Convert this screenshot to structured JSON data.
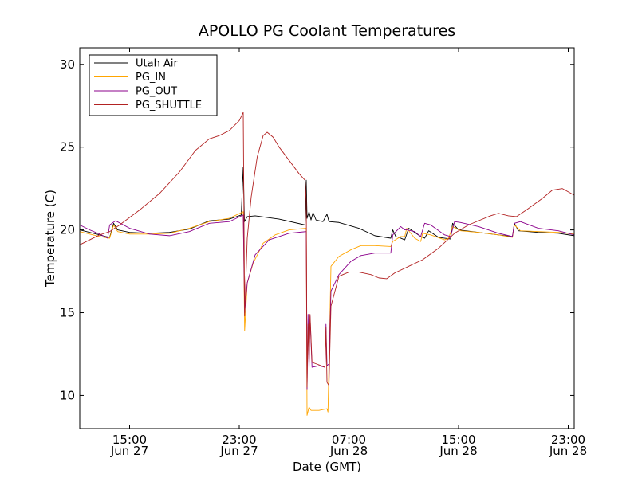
{
  "chart_data": {
    "type": "line",
    "title": "APOLLO PG Coolant Temperatures",
    "xlabel": "Date (GMT)",
    "ylabel": "Temperature (C)",
    "xlim": [
      11,
      35.8
    ],
    "ylim": [
      8,
      31
    ],
    "grid": false,
    "legend_position": "top-left",
    "yticks": [
      {
        "value": 10,
        "label": "10"
      },
      {
        "value": 15,
        "label": "15"
      },
      {
        "value": 20,
        "label": "20"
      },
      {
        "value": 25,
        "label": "25"
      },
      {
        "value": 30,
        "label": "30"
      }
    ],
    "xticks": [
      {
        "value": 13.5,
        "time": "15:00",
        "date": "Jun 27"
      },
      {
        "value": 19,
        "time": "23:00",
        "date": "Jun 27"
      },
      {
        "value": 24.5,
        "time": "07:00",
        "date": "Jun 28"
      },
      {
        "value": 30,
        "time": "15:00",
        "date": "Jun 28"
      },
      {
        "value": 35.5,
        "time": "23:00",
        "date": "Jun 28"
      }
    ],
    "series": [
      {
        "name": "Utah Air",
        "color": "#000000",
        "points": [
          [
            11,
            20.0
          ],
          [
            11.5,
            19.85
          ],
          [
            12,
            19.7
          ],
          [
            12.3,
            19.6
          ],
          [
            12.5,
            19.55
          ],
          [
            12.7,
            20.4
          ],
          [
            12.9,
            20.0
          ],
          [
            13.5,
            19.85
          ],
          [
            14.5,
            19.8
          ],
          [
            15.5,
            19.85
          ],
          [
            16.5,
            20.05
          ],
          [
            17.5,
            20.55
          ],
          [
            18.5,
            20.65
          ],
          [
            19.1,
            20.9
          ],
          [
            19.2,
            23.8
          ],
          [
            19.26,
            20.5
          ],
          [
            19.4,
            20.8
          ],
          [
            19.8,
            20.85
          ],
          [
            21,
            20.65
          ],
          [
            22.3,
            20.3
          ],
          [
            22.36,
            23.0
          ],
          [
            22.4,
            20.7
          ],
          [
            22.5,
            21.1
          ],
          [
            22.6,
            20.6
          ],
          [
            22.7,
            21.05
          ],
          [
            22.85,
            20.6
          ],
          [
            23.2,
            20.5
          ],
          [
            23.4,
            20.95
          ],
          [
            23.5,
            20.5
          ],
          [
            24,
            20.45
          ],
          [
            25,
            20.1
          ],
          [
            25.8,
            19.65
          ],
          [
            26.6,
            19.5
          ],
          [
            26.7,
            20.0
          ],
          [
            26.85,
            19.6
          ],
          [
            27.0,
            19.55
          ],
          [
            27.3,
            19.4
          ],
          [
            27.5,
            20.1
          ],
          [
            28.1,
            19.6
          ],
          [
            28.3,
            19.5
          ],
          [
            28.5,
            19.95
          ],
          [
            29,
            19.55
          ],
          [
            29.6,
            19.45
          ],
          [
            29.7,
            20.4
          ],
          [
            30,
            20.0
          ],
          [
            31,
            19.85
          ],
          [
            32,
            19.7
          ],
          [
            32.7,
            19.6
          ],
          [
            32.8,
            20.4
          ],
          [
            33,
            19.95
          ],
          [
            34,
            19.85
          ],
          [
            35,
            19.8
          ],
          [
            35.8,
            19.65
          ]
        ]
      },
      {
        "name": "PG_IN",
        "color": "#ffa500",
        "points": [
          [
            11,
            19.9
          ],
          [
            11.5,
            19.75
          ],
          [
            12,
            19.6
          ],
          [
            12.5,
            19.5
          ],
          [
            12.7,
            20.3
          ],
          [
            12.9,
            19.9
          ],
          [
            13.5,
            19.75
          ],
          [
            14.5,
            19.75
          ],
          [
            15.5,
            19.8
          ],
          [
            16.5,
            20.1
          ],
          [
            17.5,
            20.5
          ],
          [
            18.5,
            20.7
          ],
          [
            19.2,
            21.1
          ],
          [
            19.27,
            13.9
          ],
          [
            19.4,
            16.8
          ],
          [
            19.7,
            18.0
          ],
          [
            20.2,
            19.2
          ],
          [
            20.8,
            19.7
          ],
          [
            21.5,
            20.0
          ],
          [
            22.36,
            20.1
          ],
          [
            22.4,
            8.8
          ],
          [
            22.5,
            9.3
          ],
          [
            22.6,
            9.1
          ],
          [
            23.0,
            9.1
          ],
          [
            23.4,
            9.2
          ],
          [
            23.45,
            9.0
          ],
          [
            23.6,
            17.8
          ],
          [
            24,
            18.4
          ],
          [
            24.6,
            18.8
          ],
          [
            25.1,
            19.05
          ],
          [
            25.8,
            19.05
          ],
          [
            26.6,
            19.0
          ],
          [
            26.7,
            19.3
          ],
          [
            27.1,
            19.6
          ],
          [
            27.3,
            19.6
          ],
          [
            27.4,
            20.1
          ],
          [
            27.8,
            19.5
          ],
          [
            28.1,
            19.3
          ],
          [
            28.2,
            19.8
          ],
          [
            28.6,
            19.7
          ],
          [
            29.3,
            19.4
          ],
          [
            29.5,
            19.5
          ],
          [
            29.7,
            20.2
          ],
          [
            30.1,
            19.95
          ],
          [
            31,
            19.85
          ],
          [
            32,
            19.7
          ],
          [
            32.7,
            19.55
          ],
          [
            32.8,
            20.3
          ],
          [
            33.1,
            19.95
          ],
          [
            34,
            19.9
          ],
          [
            35,
            19.85
          ],
          [
            35.8,
            19.75
          ]
        ]
      },
      {
        "name": "PG_OUT",
        "color": "#8b008b",
        "points": [
          [
            11,
            20.3
          ],
          [
            11.5,
            20.0
          ],
          [
            12,
            19.75
          ],
          [
            12.4,
            19.5
          ],
          [
            12.5,
            20.3
          ],
          [
            12.8,
            20.55
          ],
          [
            13.5,
            20.1
          ],
          [
            14.5,
            19.75
          ],
          [
            15.5,
            19.65
          ],
          [
            16.5,
            19.9
          ],
          [
            17.5,
            20.4
          ],
          [
            18.5,
            20.5
          ],
          [
            19.2,
            20.9
          ],
          [
            19.27,
            15.0
          ],
          [
            19.4,
            16.8
          ],
          [
            19.8,
            18.5
          ],
          [
            20.5,
            19.4
          ],
          [
            21.5,
            19.8
          ],
          [
            22.36,
            19.9
          ],
          [
            22.4,
            10.4
          ],
          [
            22.45,
            14.9
          ],
          [
            22.5,
            11.5
          ],
          [
            22.55,
            14.8
          ],
          [
            22.65,
            11.7
          ],
          [
            23.0,
            11.8
          ],
          [
            23.3,
            11.7
          ],
          [
            23.35,
            14.3
          ],
          [
            23.4,
            11.8
          ],
          [
            23.5,
            11.9
          ],
          [
            23.6,
            16.3
          ],
          [
            24,
            17.3
          ],
          [
            24.6,
            18.1
          ],
          [
            25.1,
            18.45
          ],
          [
            25.8,
            18.6
          ],
          [
            26.6,
            18.6
          ],
          [
            26.7,
            19.7
          ],
          [
            27.1,
            20.2
          ],
          [
            27.3,
            20.0
          ],
          [
            27.4,
            20.0
          ],
          [
            27.8,
            19.9
          ],
          [
            28.1,
            19.6
          ],
          [
            28.3,
            20.4
          ],
          [
            28.6,
            20.3
          ],
          [
            29.3,
            19.7
          ],
          [
            29.6,
            19.6
          ],
          [
            29.8,
            20.5
          ],
          [
            30.1,
            20.45
          ],
          [
            31,
            20.2
          ],
          [
            32,
            19.8
          ],
          [
            32.7,
            19.6
          ],
          [
            32.8,
            20.4
          ],
          [
            33.1,
            20.5
          ],
          [
            34,
            20.1
          ],
          [
            35,
            19.95
          ],
          [
            35.8,
            19.7
          ]
        ]
      },
      {
        "name": "PG_SHUTTLE",
        "color": "#b22222",
        "points": [
          [
            11,
            19.1
          ],
          [
            11.5,
            19.4
          ],
          [
            12,
            19.7
          ],
          [
            12.5,
            19.9
          ],
          [
            13,
            20.3
          ],
          [
            14,
            21.2
          ],
          [
            15,
            22.2
          ],
          [
            16,
            23.5
          ],
          [
            16.8,
            24.8
          ],
          [
            17.5,
            25.5
          ],
          [
            18,
            25.7
          ],
          [
            18.5,
            26.0
          ],
          [
            19,
            26.6
          ],
          [
            19.2,
            27.1
          ],
          [
            19.27,
            14.8
          ],
          [
            19.4,
            19.5
          ],
          [
            19.6,
            22.0
          ],
          [
            19.9,
            24.4
          ],
          [
            20.2,
            25.7
          ],
          [
            20.4,
            25.9
          ],
          [
            20.7,
            25.6
          ],
          [
            21,
            25.0
          ],
          [
            21.5,
            24.2
          ],
          [
            22,
            23.4
          ],
          [
            22.3,
            23.0
          ],
          [
            22.36,
            21.7
          ],
          [
            22.4,
            10.5
          ],
          [
            22.45,
            14.3
          ],
          [
            22.5,
            11.8
          ],
          [
            22.55,
            14.9
          ],
          [
            22.65,
            12.0
          ],
          [
            23.0,
            11.85
          ],
          [
            23.3,
            11.7
          ],
          [
            23.35,
            14.1
          ],
          [
            23.4,
            10.8
          ],
          [
            23.5,
            10.6
          ],
          [
            23.6,
            15.4
          ],
          [
            24,
            17.2
          ],
          [
            24.5,
            17.45
          ],
          [
            25,
            17.45
          ],
          [
            25.6,
            17.3
          ],
          [
            26,
            17.1
          ],
          [
            26.4,
            17.05
          ],
          [
            26.8,
            17.4
          ],
          [
            27.5,
            17.8
          ],
          [
            28.2,
            18.2
          ],
          [
            29,
            18.9
          ],
          [
            29.8,
            19.8
          ],
          [
            30.5,
            20.3
          ],
          [
            31.1,
            20.6
          ],
          [
            31.6,
            20.85
          ],
          [
            32,
            21.0
          ],
          [
            32.5,
            20.85
          ],
          [
            32.9,
            20.8
          ],
          [
            33.4,
            21.2
          ],
          [
            34.2,
            21.9
          ],
          [
            34.7,
            22.4
          ],
          [
            35.2,
            22.5
          ],
          [
            35.8,
            22.1
          ]
        ]
      }
    ]
  }
}
